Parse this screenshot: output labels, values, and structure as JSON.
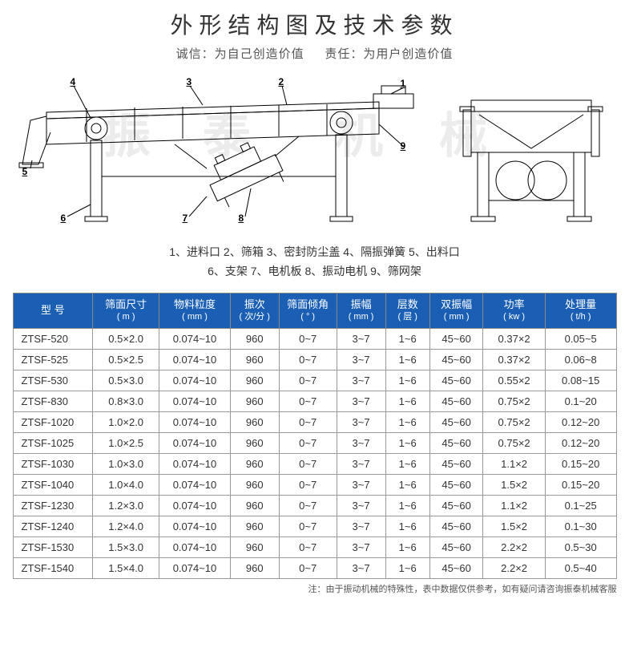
{
  "title": "外形结构图及技术参数",
  "subtitle_left": "诚信：为自己创造价值",
  "subtitle_right": "责任：为用户创造价值",
  "callouts": {
    "n1": "1",
    "n2": "2",
    "n3": "3",
    "n4": "4",
    "n5": "5",
    "n6": "6",
    "n7": "7",
    "n8": "8",
    "n9": "9"
  },
  "legend_line1": "1、进料口   2、筛箱   3、密封防尘盖   4、隔振弹簧   5、出料口",
  "legend_line2": "6、支架   7、电机板   8、振动电机   9、筛网架",
  "table": {
    "header_bg": "#1a5fb4",
    "header_fg": "#ffffff",
    "border_color": "#999999",
    "columns": [
      {
        "main": "型 号",
        "sub": ""
      },
      {
        "main": "筛面尺寸",
        "sub": "( m )"
      },
      {
        "main": "物料粒度",
        "sub": "( mm )"
      },
      {
        "main": "振次",
        "sub": "( 次/分 )"
      },
      {
        "main": "筛面倾角",
        "sub": "( ° )"
      },
      {
        "main": "振幅",
        "sub": "( mm )"
      },
      {
        "main": "层数",
        "sub": "( 层 )"
      },
      {
        "main": "双振幅",
        "sub": "( mm )"
      },
      {
        "main": "功率",
        "sub": "( kw )"
      },
      {
        "main": "处理量",
        "sub": "( t/h )"
      }
    ],
    "col_widths": [
      "90",
      "75",
      "80",
      "55",
      "65",
      "55",
      "50",
      "60",
      "70",
      "80"
    ],
    "rows": [
      [
        "ZTSF-520",
        "0.5×2.0",
        "0.074~10",
        "960",
        "0~7",
        "3~7",
        "1~6",
        "45~60",
        "0.37×2",
        "0.05~5"
      ],
      [
        "ZTSF-525",
        "0.5×2.5",
        "0.074~10",
        "960",
        "0~7",
        "3~7",
        "1~6",
        "45~60",
        "0.37×2",
        "0.06~8"
      ],
      [
        "ZTSF-530",
        "0.5×3.0",
        "0.074~10",
        "960",
        "0~7",
        "3~7",
        "1~6",
        "45~60",
        "0.55×2",
        "0.08~15"
      ],
      [
        "ZTSF-830",
        "0.8×3.0",
        "0.074~10",
        "960",
        "0~7",
        "3~7",
        "1~6",
        "45~60",
        "0.75×2",
        "0.1~20"
      ],
      [
        "ZTSF-1020",
        "1.0×2.0",
        "0.074~10",
        "960",
        "0~7",
        "3~7",
        "1~6",
        "45~60",
        "0.75×2",
        "0.12~20"
      ],
      [
        "ZTSF-1025",
        "1.0×2.5",
        "0.074~10",
        "960",
        "0~7",
        "3~7",
        "1~6",
        "45~60",
        "0.75×2",
        "0.12~20"
      ],
      [
        "ZTSF-1030",
        "1.0×3.0",
        "0.074~10",
        "960",
        "0~7",
        "3~7",
        "1~6",
        "45~60",
        "1.1×2",
        "0.15~20"
      ],
      [
        "ZTSF-1040",
        "1.0×4.0",
        "0.074~10",
        "960",
        "0~7",
        "3~7",
        "1~6",
        "45~60",
        "1.5×2",
        "0.15~20"
      ],
      [
        "ZTSF-1230",
        "1.2×3.0",
        "0.074~10",
        "960",
        "0~7",
        "3~7",
        "1~6",
        "45~60",
        "1.1×2",
        "0.1~25"
      ],
      [
        "ZTSF-1240",
        "1.2×4.0",
        "0.074~10",
        "960",
        "0~7",
        "3~7",
        "1~6",
        "45~60",
        "1.5×2",
        "0.1~30"
      ],
      [
        "ZTSF-1530",
        "1.5×3.0",
        "0.074~10",
        "960",
        "0~7",
        "3~7",
        "1~6",
        "45~60",
        "2.2×2",
        "0.5~30"
      ],
      [
        "ZTSF-1540",
        "1.5×4.0",
        "0.074~10",
        "960",
        "0~7",
        "3~7",
        "1~6",
        "45~60",
        "2.2×2",
        "0.5~40"
      ]
    ]
  },
  "footnote": "注：由于振动机械的特殊性，表中数据仅供参考，如有疑问请咨询振泰机械客服",
  "diagram": {
    "stroke": "#000000",
    "stroke_width": 1,
    "watermark_color": "#e8e8e8"
  }
}
